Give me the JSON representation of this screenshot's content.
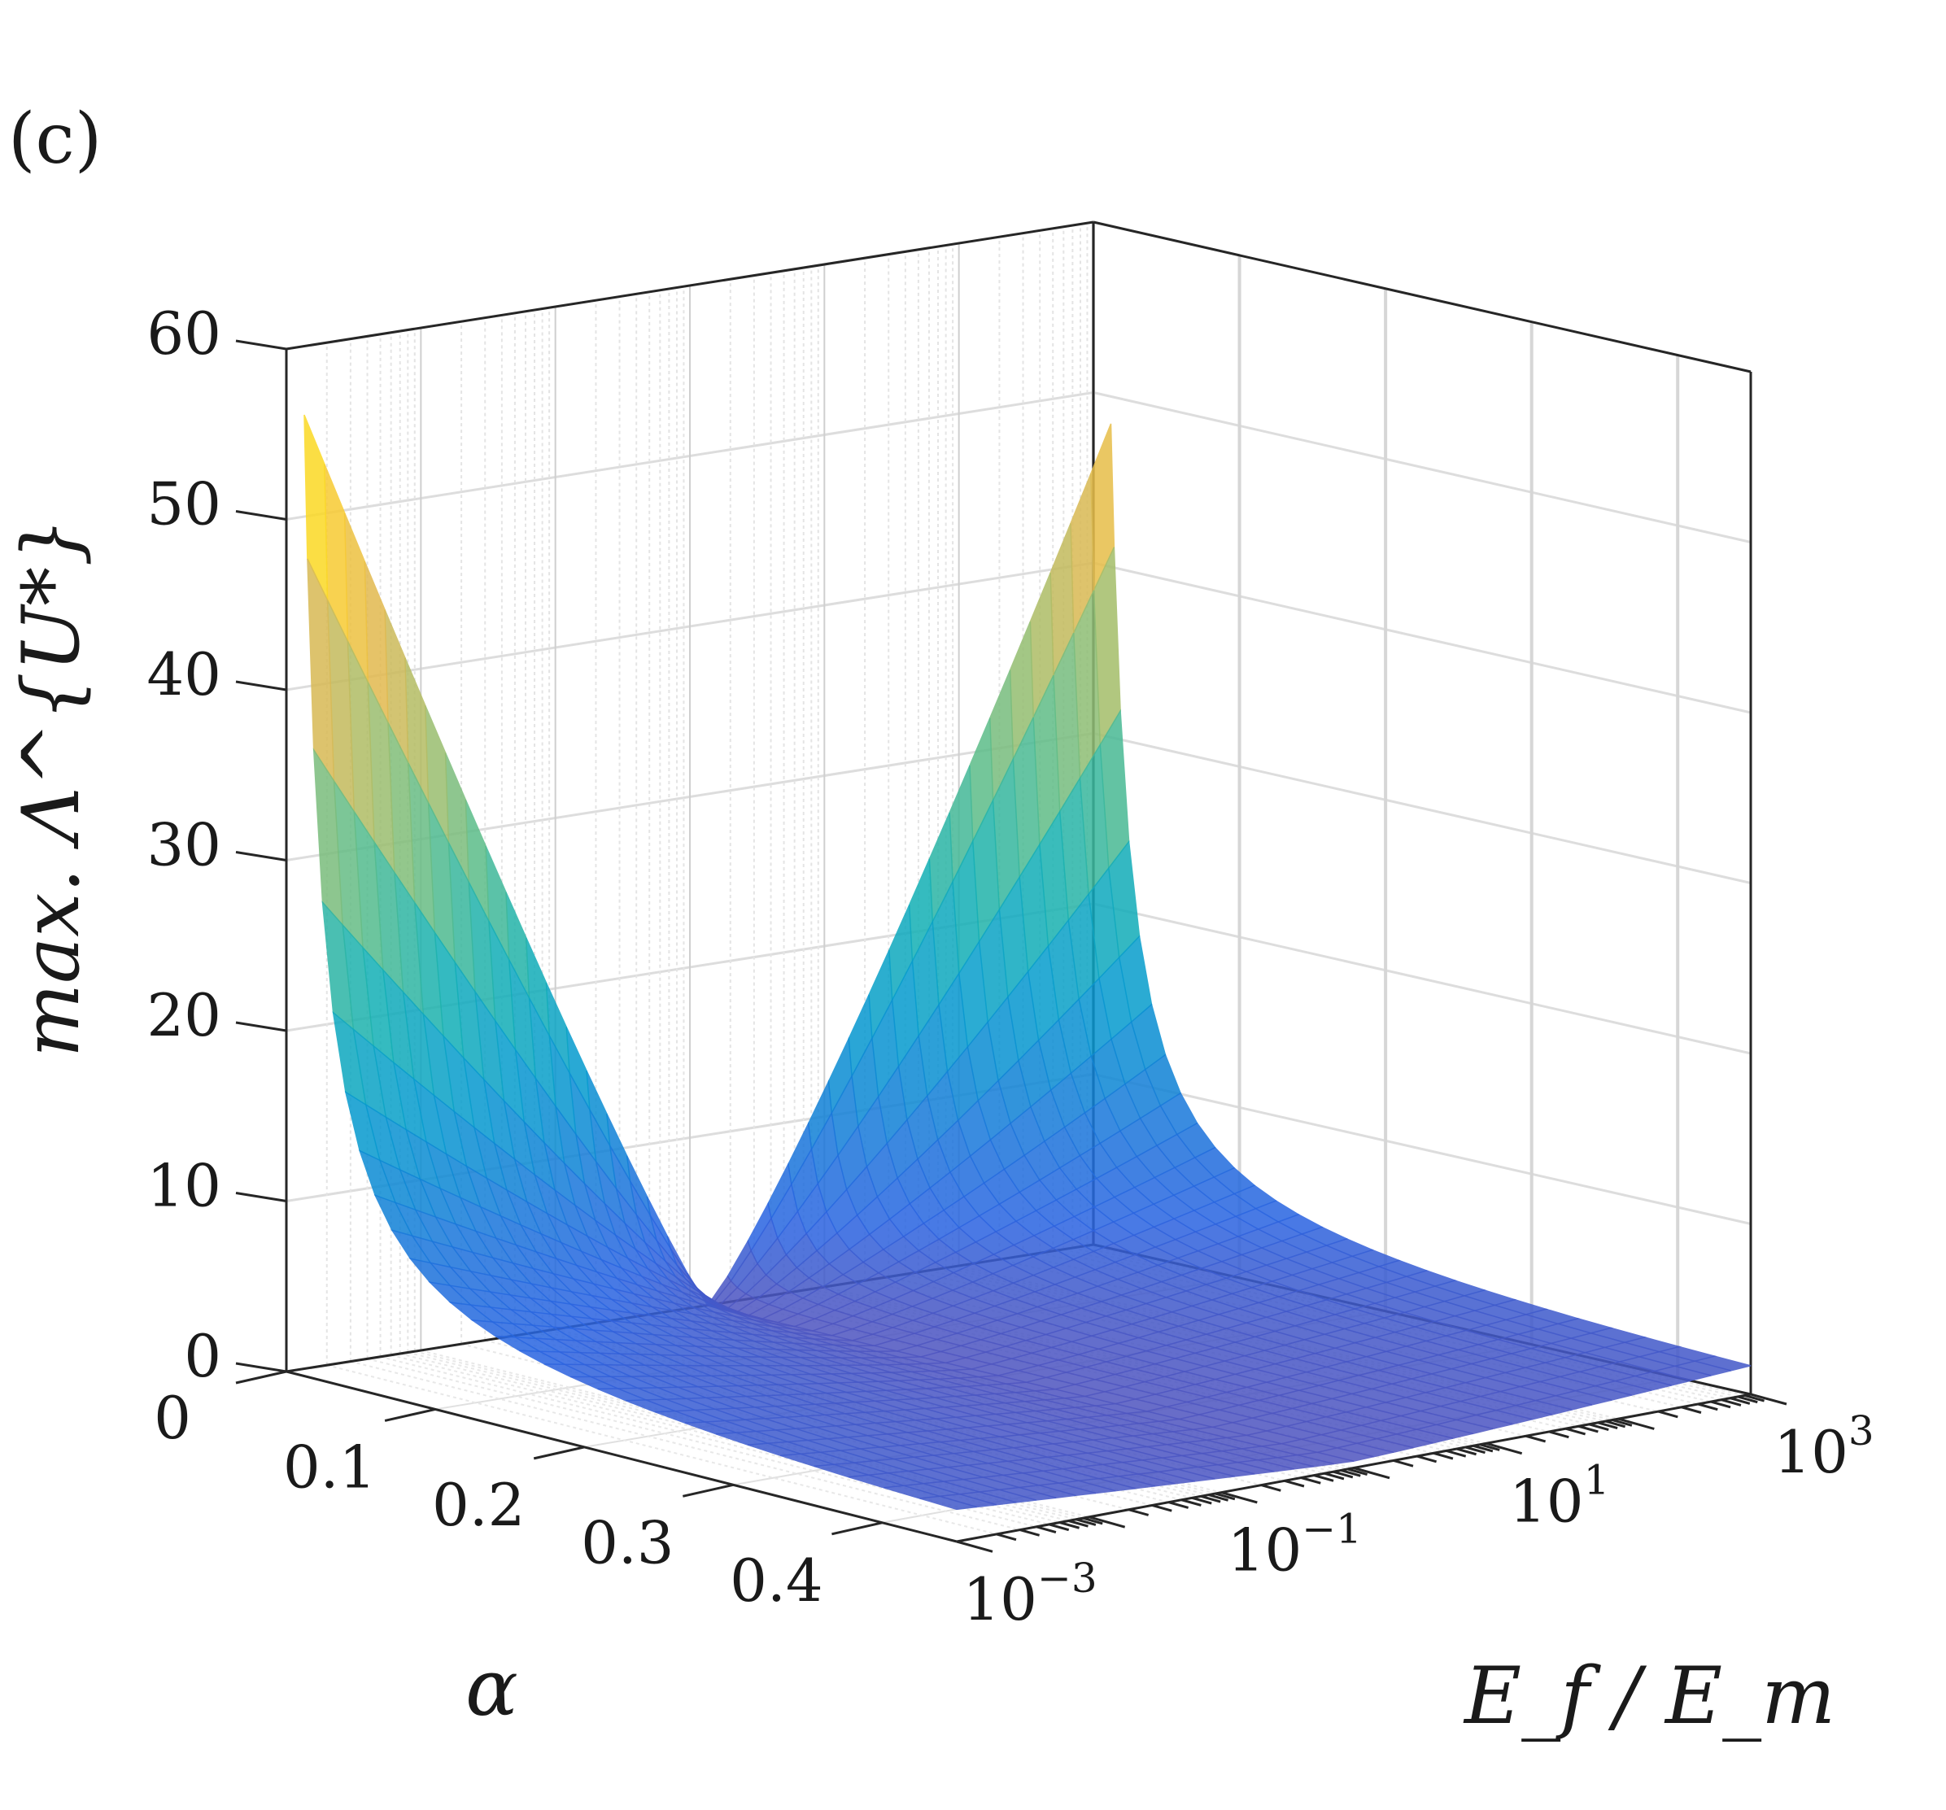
{
  "chart_data": {
    "type": "surface3d",
    "panel_label": "(c)",
    "zlabel": "max. Λ^{U*}",
    "xlabel": "α",
    "ylabel": "E_f / E_m",
    "zlim": [
      0,
      60
    ],
    "zticks": [
      "0",
      "10",
      "20",
      "30",
      "40",
      "50",
      "60"
    ],
    "xlim": [
      0,
      0.45
    ],
    "xticks": [
      "0",
      "0.1",
      "0.2",
      "0.3",
      "0.4"
    ],
    "ylim_log10": [
      -3,
      3
    ],
    "yscale": "log",
    "yticks": [
      {
        "base": "10",
        "exp": "−3"
      },
      {
        "base": "10",
        "exp": "−1"
      },
      {
        "base": "10",
        "exp": "1"
      },
      {
        "base": "10",
        "exp": "3"
      }
    ],
    "grid": true,
    "colormap": "parula",
    "surface_samples": {
      "alpha": [
        0.01,
        0.02,
        0.03,
        0.05,
        0.08,
        0.12,
        0.17,
        0.23,
        0.3,
        0.37,
        0.44
      ],
      "log10_Ef_over_Em": [
        -3,
        -2.4,
        -1.8,
        -1.2,
        -0.6,
        0,
        0.6,
        1.2,
        1.8,
        2.4,
        3
      ],
      "peak_at_min_alpha_min_ratio": 56,
      "peak_at_min_alpha_max_ratio": 48,
      "minimum_near_ratio_1": 0.5
    }
  }
}
